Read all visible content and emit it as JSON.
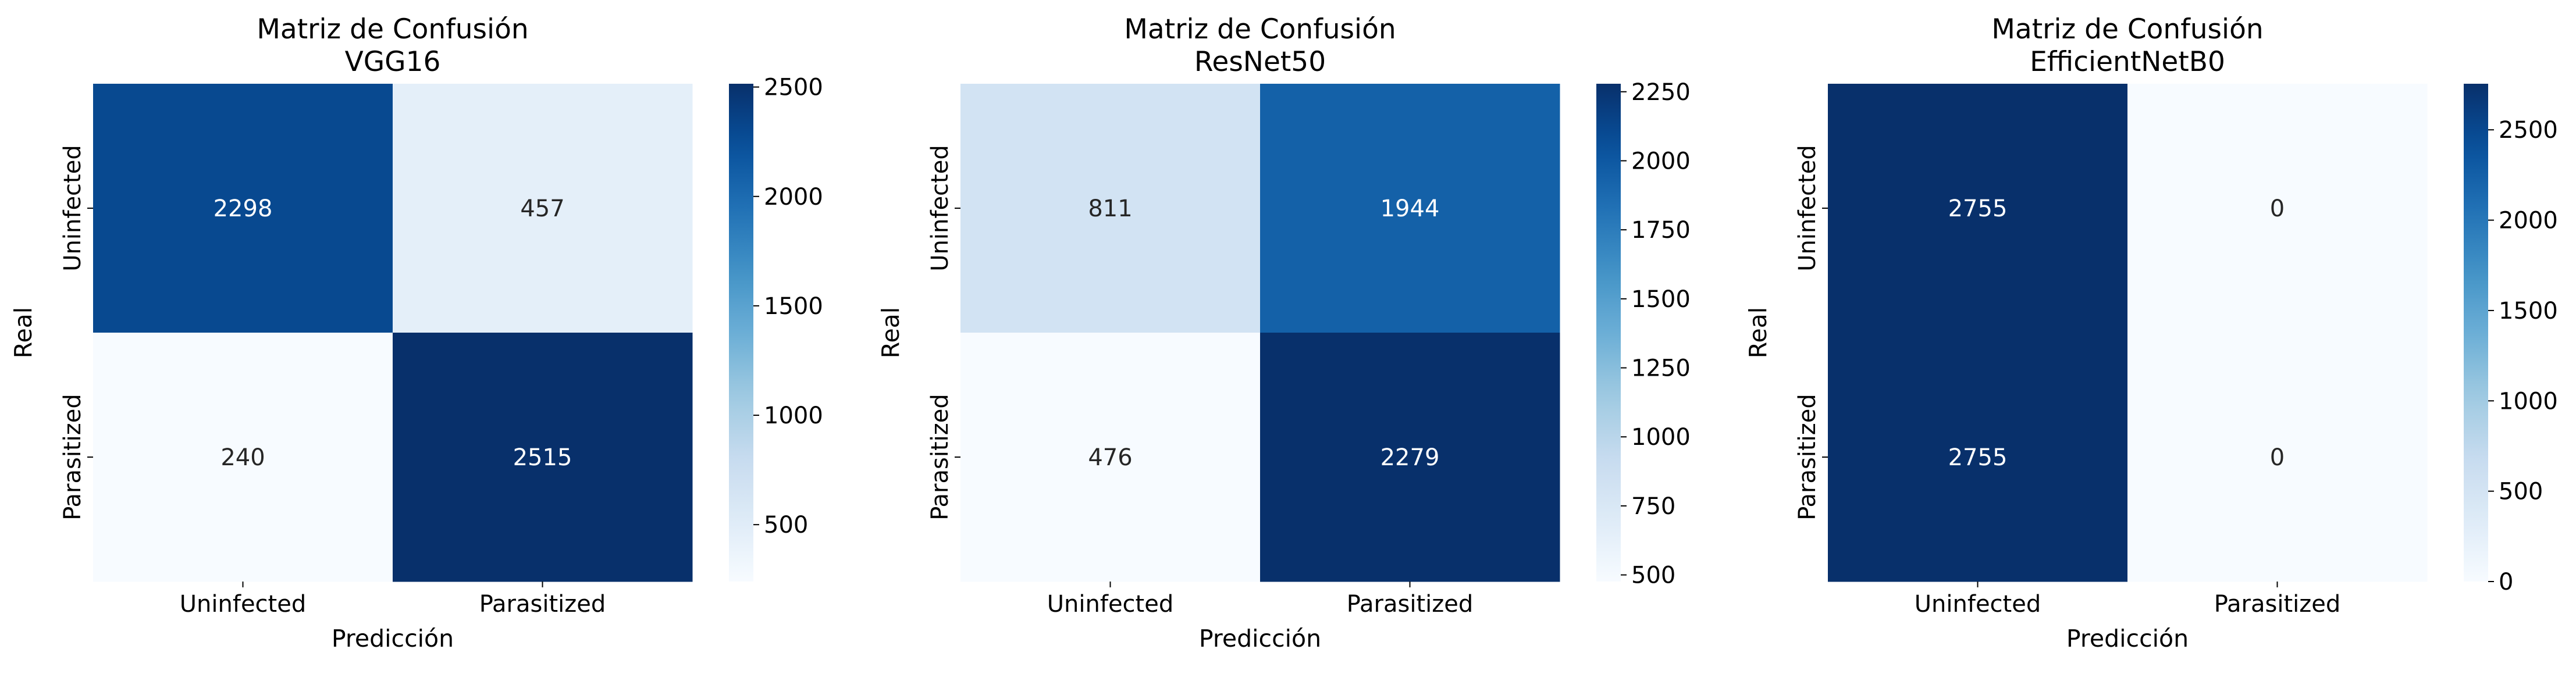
{
  "chart_data": [
    {
      "type": "heatmap",
      "title": "Matriz de Confusión",
      "subtitle": "VGG16",
      "xlabel": "Predicción",
      "ylabel": "Real",
      "x_categories": [
        "Uninfected",
        "Parasitized"
      ],
      "y_categories": [
        "Uninfected",
        "Parasitized"
      ],
      "values": [
        [
          2298,
          457
        ],
        [
          240,
          2515
        ]
      ],
      "colormap": "Blues",
      "colorbar": {
        "range": [
          240,
          2515
        ],
        "ticks": [
          500,
          1000,
          1500,
          2000,
          2500
        ]
      }
    },
    {
      "type": "heatmap",
      "title": "Matriz de Confusión",
      "subtitle": "ResNet50",
      "xlabel": "Predicción",
      "ylabel": "Real",
      "x_categories": [
        "Uninfected",
        "Parasitized"
      ],
      "y_categories": [
        "Uninfected",
        "Parasitized"
      ],
      "values": [
        [
          811,
          1944
        ],
        [
          476,
          2279
        ]
      ],
      "colormap": "Blues",
      "colorbar": {
        "range": [
          476,
          2279
        ],
        "ticks": [
          500,
          750,
          1000,
          1250,
          1500,
          1750,
          2000,
          2250
        ]
      }
    },
    {
      "type": "heatmap",
      "title": "Matriz de Confusión",
      "subtitle": "EfficientNetB0",
      "xlabel": "Predicción",
      "ylabel": "Real",
      "x_categories": [
        "Uninfected",
        "Parasitized"
      ],
      "y_categories": [
        "Uninfected",
        "Parasitized"
      ],
      "values": [
        [
          2755,
          0
        ],
        [
          2755,
          0
        ]
      ],
      "colormap": "Blues",
      "colorbar": {
        "range": [
          0,
          2755
        ],
        "ticks": [
          0,
          500,
          1000,
          1500,
          2000,
          2500
        ]
      }
    }
  ],
  "colors": {
    "blues_ramp": [
      "#f7fbff",
      "#deebf7",
      "#c6dbef",
      "#9ecae1",
      "#6baed6",
      "#4292c6",
      "#2171b5",
      "#08519c",
      "#08306b"
    ],
    "cell_text_dark": "#262626",
    "cell_text_light": "#ffffff"
  }
}
